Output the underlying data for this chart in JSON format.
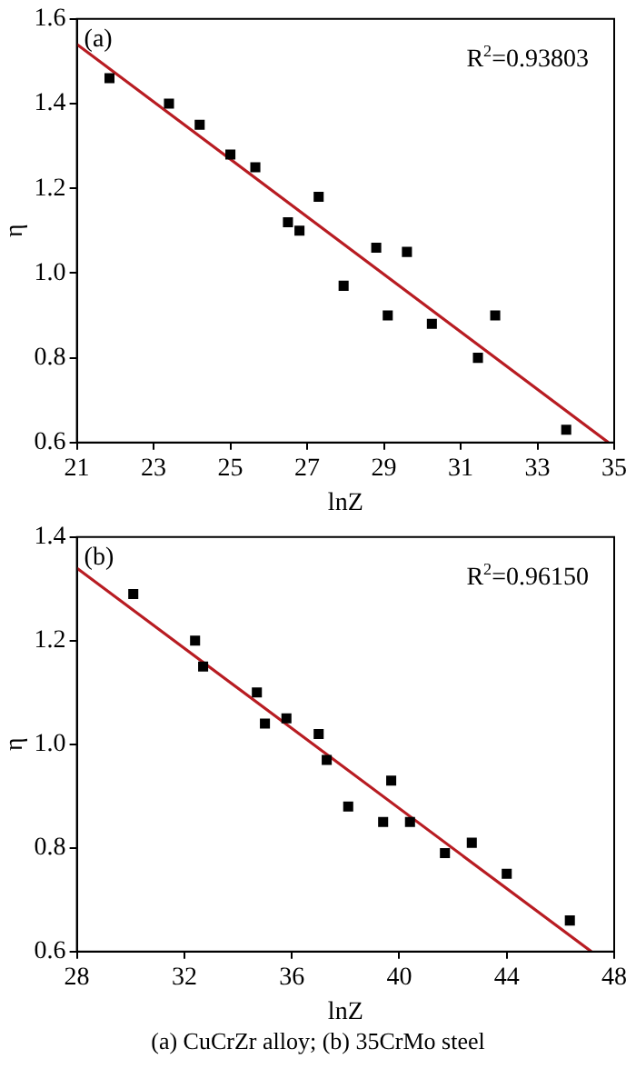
{
  "chart_data": [
    {
      "type": "scatter",
      "xlabel": "lnZ",
      "ylabel": "η",
      "xlim": [
        21,
        35
      ],
      "xticks": [
        21,
        23,
        25,
        27,
        29,
        31,
        33,
        35
      ],
      "ylim": [
        0.6,
        1.6
      ],
      "yticks": [
        0.6,
        0.8,
        {
          "value": 1,
          "label": "1.0"
        },
        1.2,
        1.4,
        1.6
      ],
      "grid": false,
      "annotations": [
        "(a)",
        "R$^{2}$=0.93803"
      ],
      "series": [
        {
          "type": "scatter",
          "marker": "square",
          "color": "#000000",
          "x": [
            21.85,
            23.4,
            24.2,
            25.0,
            25.65,
            26.5,
            26.8,
            27.3,
            27.95,
            28.8,
            29.1,
            29.6,
            30.25,
            31.45,
            31.9,
            33.75
          ],
          "values": [
            1.46,
            1.4,
            1.35,
            1.28,
            1.25,
            1.12,
            1.1,
            1.18,
            0.97,
            1.06,
            0.9,
            1.05,
            0.88,
            0.8,
            0.9,
            0.63
          ]
        },
        {
          "type": "line",
          "color": "#b81c22",
          "x": [
            21,
            34.85
          ],
          "values": [
            1.54,
            0.6
          ]
        }
      ]
    },
    {
      "type": "scatter",
      "xlabel": "lnZ",
      "ylabel": "η",
      "xlim": [
        28,
        48
      ],
      "xticks": [
        28,
        32,
        36,
        40,
        44,
        48
      ],
      "ylim": [
        0.6,
        1.4
      ],
      "yticks": [
        0.6,
        0.8,
        {
          "value": 1,
          "label": "1.0"
        },
        1.2,
        1.4
      ],
      "grid": false,
      "annotations": [
        "(b)",
        "R$^{2}$=0.96150",
        "(a) CuCrZr alloy; (b) 35CrMo steel"
      ],
      "series": [
        {
          "type": "scatter",
          "marker": "square",
          "color": "#000000",
          "x": [
            30.1,
            32.4,
            32.7,
            34.7,
            35.0,
            35.8,
            37.0,
            37.3,
            38.1,
            39.4,
            39.7,
            40.4,
            41.7,
            42.7,
            44.0,
            46.35
          ],
          "values": [
            1.29,
            1.2,
            1.15,
            1.1,
            1.04,
            1.05,
            1.02,
            0.97,
            0.88,
            0.85,
            0.93,
            0.85,
            0.79,
            0.81,
            0.75,
            0.66
          ]
        },
        {
          "type": "line",
          "color": "#b81c22",
          "x": [
            28,
            47.15
          ],
          "values": [
            1.34,
            0.6
          ]
        }
      ]
    }
  ]
}
